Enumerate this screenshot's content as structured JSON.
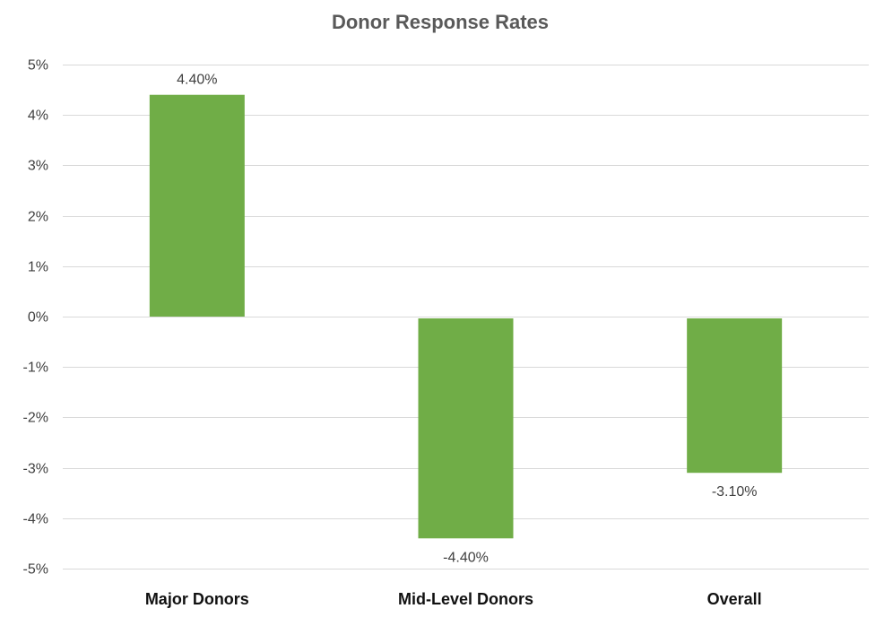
{
  "chart_data": {
    "type": "bar",
    "title": "Donor Response Rates",
    "xlabel": "",
    "ylabel": "",
    "categories": [
      "Major Donors",
      "Mid-Level Donors",
      "Overall"
    ],
    "values": [
      4.4,
      -4.4,
      -3.1
    ],
    "data_labels": [
      "4.40%",
      "-4.40%",
      "-3.10%"
    ],
    "ylim": [
      -5,
      5
    ],
    "yticks": [
      5,
      4,
      3,
      2,
      1,
      0,
      -1,
      -2,
      -3,
      -4,
      -5
    ],
    "ytick_labels": [
      "5%",
      "4%",
      "3%",
      "2%",
      "1%",
      "0%",
      "-1%",
      "-2%",
      "-3%",
      "-4%",
      "-5%"
    ],
    "grid": true,
    "legend": "none",
    "bar_color": "#70AD47"
  }
}
